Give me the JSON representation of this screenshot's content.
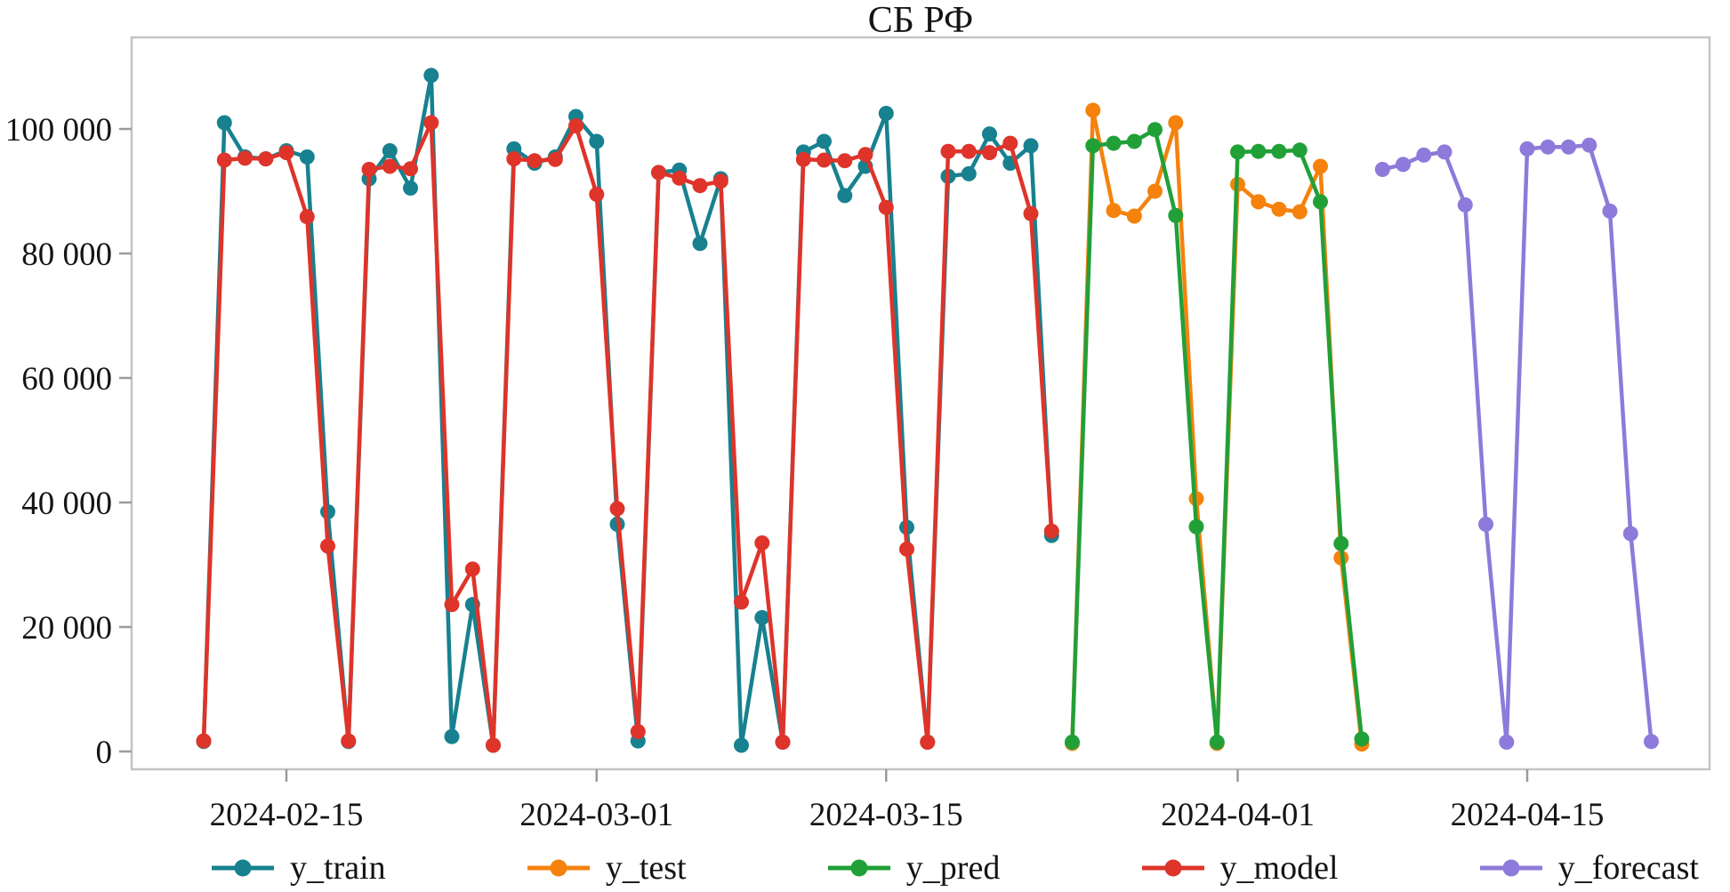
{
  "chart_data": {
    "type": "line",
    "title": "СБ РФ",
    "grid": false,
    "legend_position": "bottom",
    "plot_bg": "#ffffff",
    "frame_color": "#c4c4c4",
    "tick_color": "#9b9b9b",
    "text_color": "#141414",
    "x_axis": {
      "ticks": [
        "2024-02-15",
        "2024-03-01",
        "2024-03-15",
        "2024-04-01",
        "2024-04-15"
      ]
    },
    "y_axis": {
      "ticks": [
        {
          "value": 0,
          "label": "0"
        },
        {
          "value": 20000,
          "label": "20 000"
        },
        {
          "value": 40000,
          "label": "40 000"
        },
        {
          "value": 60000,
          "label": "60 000"
        },
        {
          "value": 80000,
          "label": "80 000"
        },
        {
          "value": 100000,
          "label": "100 000"
        }
      ],
      "ylim": [
        -5600,
        114700
      ]
    },
    "series": [
      {
        "name": "y_train",
        "color": "#17818f",
        "dates": [
          "2024-02-11",
          "2024-02-12",
          "2024-02-13",
          "2024-02-14",
          "2024-02-15",
          "2024-02-16",
          "2024-02-17",
          "2024-02-18",
          "2024-02-19",
          "2024-02-20",
          "2024-02-21",
          "2024-02-22",
          "2024-02-23",
          "2024-02-24",
          "2024-02-25",
          "2024-02-26",
          "2024-02-27",
          "2024-02-28",
          "2024-02-29",
          "2024-03-01",
          "2024-03-02",
          "2024-03-03",
          "2024-03-04",
          "2024-03-05",
          "2024-03-06",
          "2024-03-07",
          "2024-03-08",
          "2024-03-09",
          "2024-03-10",
          "2024-03-11",
          "2024-03-12",
          "2024-03-13",
          "2024-03-14",
          "2024-03-15",
          "2024-03-16",
          "2024-03-17",
          "2024-03-18",
          "2024-03-19",
          "2024-03-20",
          "2024-03-21",
          "2024-03-22",
          "2024-03-23"
        ],
        "values": [
          1600,
          101000,
          95500,
          95200,
          96500,
          95500,
          38500,
          1600,
          92000,
          96500,
          90500,
          108600,
          2400,
          23600,
          1000,
          96800,
          94500,
          95500,
          102000,
          98000,
          36500,
          1700,
          93000,
          93400,
          81600,
          92000,
          1000,
          21500,
          1500,
          96300,
          98000,
          89300,
          94000,
          102500,
          36000,
          1500,
          92400,
          92800,
          99200,
          94500,
          97300,
          34700
        ]
      },
      {
        "name": "y_test",
        "color": "#f5820d",
        "dates": [
          "2024-03-24",
          "2024-03-25",
          "2024-03-26",
          "2024-03-27",
          "2024-03-28",
          "2024-03-29",
          "2024-03-30",
          "2024-03-31",
          "2024-04-01",
          "2024-04-02",
          "2024-04-03",
          "2024-04-04",
          "2024-04-05",
          "2024-04-06",
          "2024-04-07"
        ],
        "values": [
          1300,
          103000,
          86900,
          86000,
          90000,
          101000,
          40600,
          1300,
          91100,
          88300,
          87100,
          86700,
          94000,
          31100,
          1200
        ]
      },
      {
        "name": "y_pred",
        "color": "#21a038",
        "dates": [
          "2024-03-24",
          "2024-03-25",
          "2024-03-26",
          "2024-03-27",
          "2024-03-28",
          "2024-03-29",
          "2024-03-30",
          "2024-03-31",
          "2024-04-01",
          "2024-04-02",
          "2024-04-03",
          "2024-04-04",
          "2024-04-05",
          "2024-04-06",
          "2024-04-07"
        ],
        "values": [
          1500,
          97300,
          97700,
          98000,
          99900,
          86100,
          36100,
          1500,
          96300,
          96400,
          96400,
          96600,
          88300,
          33400,
          2000
        ]
      },
      {
        "name": "y_model",
        "color": "#de342a",
        "dates": [
          "2024-02-11",
          "2024-02-12",
          "2024-02-13",
          "2024-02-14",
          "2024-02-15",
          "2024-02-16",
          "2024-02-17",
          "2024-02-18",
          "2024-02-19",
          "2024-02-20",
          "2024-02-21",
          "2024-02-22",
          "2024-02-23",
          "2024-02-24",
          "2024-02-25",
          "2024-02-26",
          "2024-02-27",
          "2024-02-28",
          "2024-02-29",
          "2024-03-01",
          "2024-03-02",
          "2024-03-03",
          "2024-03-04",
          "2024-03-05",
          "2024-03-06",
          "2024-03-07",
          "2024-03-08",
          "2024-03-09",
          "2024-03-10",
          "2024-03-11",
          "2024-03-12",
          "2024-03-13",
          "2024-03-14",
          "2024-03-15",
          "2024-03-16",
          "2024-03-17",
          "2024-03-18",
          "2024-03-19",
          "2024-03-20",
          "2024-03-21",
          "2024-03-22",
          "2024-03-23"
        ],
        "values": [
          1700,
          95000,
          95300,
          95200,
          96200,
          85900,
          33000,
          1700,
          93500,
          94000,
          93600,
          101000,
          23600,
          29300,
          1000,
          95200,
          94900,
          95100,
          100500,
          89500,
          39000,
          3200,
          93000,
          92100,
          90900,
          91600,
          24000,
          33500,
          1500,
          95100,
          95000,
          94900,
          95900,
          87400,
          32500,
          1500,
          96400,
          96400,
          96200,
          97700,
          86400,
          35400
        ]
      },
      {
        "name": "y_forecast",
        "color": "#8d7ada",
        "dates": [
          "2024-04-08",
          "2024-04-09",
          "2024-04-10",
          "2024-04-11",
          "2024-04-12",
          "2024-04-13",
          "2024-04-14",
          "2024-04-15",
          "2024-04-16",
          "2024-04-17",
          "2024-04-18",
          "2024-04-19",
          "2024-04-20",
          "2024-04-21"
        ],
        "values": [
          93500,
          94300,
          95800,
          96300,
          87800,
          36500,
          1500,
          96800,
          97100,
          97100,
          97400,
          86800,
          35000,
          1600
        ]
      }
    ]
  }
}
